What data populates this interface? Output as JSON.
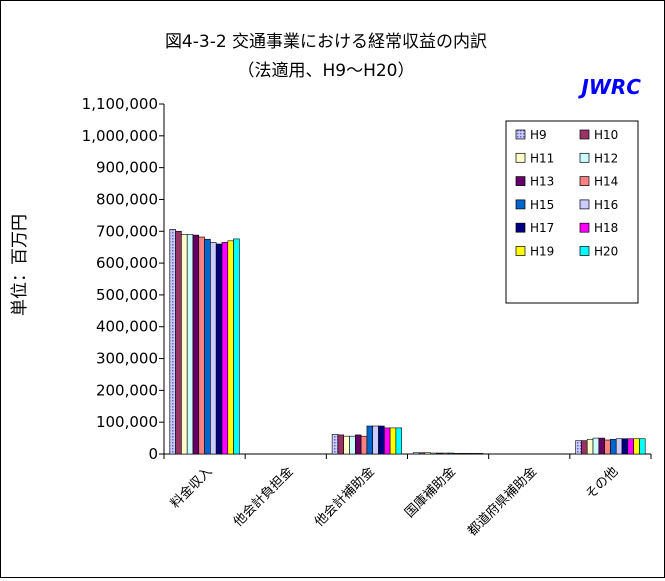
{
  "chart_data": {
    "type": "bar",
    "title": "図4-3-2 交通事業における経常収益の内訳",
    "subtitle": "（法適用、H9～H20）",
    "brand": "JWRC",
    "ylabel": "単位：百万円",
    "xlabel": "",
    "ylim": [
      0,
      1100000
    ],
    "yticks": [
      0,
      100000,
      200000,
      300000,
      400000,
      500000,
      600000,
      700000,
      800000,
      900000,
      1000000,
      1100000
    ],
    "ytick_labels": [
      "0",
      "100,000",
      "200,000",
      "300,000",
      "400,000",
      "500,000",
      "600,000",
      "700,000",
      "800,000",
      "900,000",
      "1,000,000",
      "1,100,000"
    ],
    "grid": false,
    "legend_position": "top-right",
    "categories": [
      "料金収入",
      "他会計負担金",
      "他会計補助金",
      "国庫補助金",
      "都道府県補助金",
      "その他"
    ],
    "series": [
      {
        "name": "H9",
        "color": "#9999ff",
        "pattern": "dots",
        "values": [
          706000,
          0,
          62000,
          4000,
          0,
          42000
        ]
      },
      {
        "name": "H10",
        "color": "#993366",
        "values": [
          700000,
          0,
          60000,
          4000,
          0,
          42000
        ]
      },
      {
        "name": "H11",
        "color": "#ffffcc",
        "values": [
          690000,
          0,
          56000,
          4000,
          0,
          46000
        ]
      },
      {
        "name": "H12",
        "color": "#ccffff",
        "values": [
          690000,
          0,
          56000,
          3000,
          0,
          50000
        ]
      },
      {
        "name": "H13",
        "color": "#660066",
        "values": [
          688000,
          0,
          60000,
          3000,
          0,
          50000
        ]
      },
      {
        "name": "H14",
        "color": "#ff8080",
        "values": [
          682000,
          0,
          56000,
          3000,
          0,
          44000
        ]
      },
      {
        "name": "H15",
        "color": "#0066cc",
        "values": [
          675000,
          0,
          88000,
          3000,
          0,
          46000
        ]
      },
      {
        "name": "H16",
        "color": "#ccccff",
        "values": [
          665000,
          0,
          88000,
          2000,
          0,
          48000
        ]
      },
      {
        "name": "H17",
        "color": "#000080",
        "values": [
          660000,
          0,
          88000,
          2000,
          0,
          48000
        ]
      },
      {
        "name": "H18",
        "color": "#ff00ff",
        "values": [
          665000,
          0,
          82000,
          2000,
          0,
          48000
        ]
      },
      {
        "name": "H19",
        "color": "#ffff00",
        "values": [
          670000,
          0,
          82000,
          2000,
          0,
          48000
        ]
      },
      {
        "name": "H20",
        "color": "#00ffff",
        "values": [
          676000,
          0,
          82000,
          2000,
          0,
          48000
        ]
      }
    ]
  }
}
